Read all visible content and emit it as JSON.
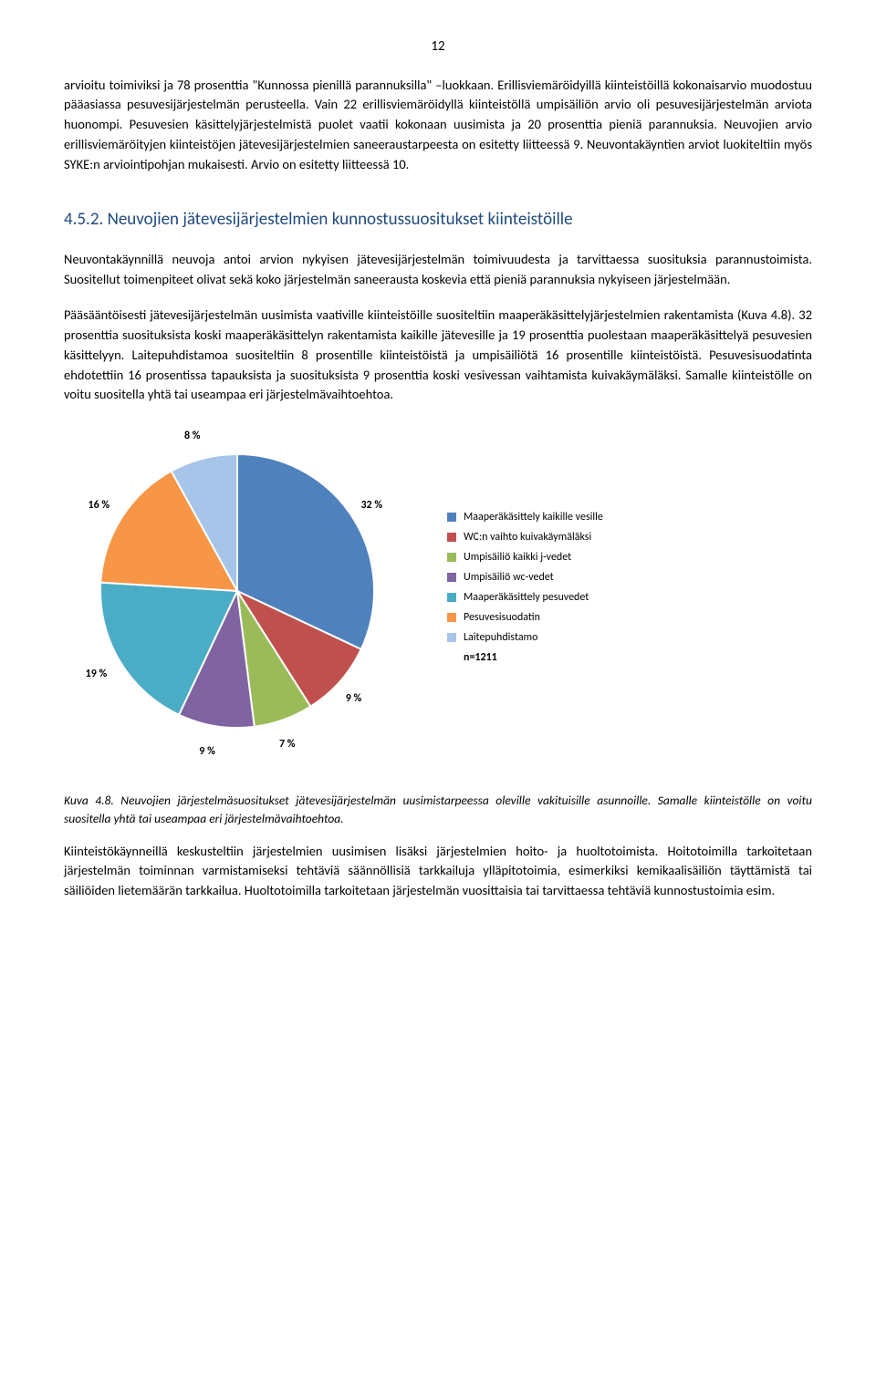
{
  "page_number": "12",
  "para1": "arvioitu toimiviksi ja 78 prosenttia \"Kunnossa pienillä parannuksilla\" –luokkaan. Erillisviemäröidyillä kiinteistöillä kokonaisarvio muodostuu pääasiassa pesuvesijärjestelmän perusteella. Vain 22 erillisviemäröidyllä kiinteistöllä umpisäiliön arvio oli pesuvesijärjestelmän arviota huonompi. Pesuvesien käsittelyjärjestelmistä puolet vaatii kokonaan uusimista ja 20 prosenttia pieniä parannuksia. Neuvojien arvio erillisviemäröityjen kiinteistöjen jätevesijärjestelmien saneeraustarpeesta on esitetty liitteessä 9. Neuvontakäyntien arviot luokiteltiin myös SYKE:n arviointipohjan mukaisesti. Arvio on esitetty liitteessä 10.",
  "heading": "4.5.2. Neuvojien jätevesijärjestelmien kunnostussuositukset kiinteistöille",
  "para2": "Neuvontakäynnillä neuvoja antoi arvion nykyisen jätevesijärjestelmän toimivuudesta ja tarvittaessa suosituksia parannustoimista. Suositellut toimenpiteet olivat sekä koko järjestelmän saneerausta koskevia että pieniä parannuksia nykyiseen järjestelmään.",
  "para3": "Pääsääntöisesti jätevesijärjestelmän uusimista vaativille kiinteistöille suositeltiin maaperäkäsittelyjärjestelmien rakentamista (Kuva 4.8). 32 prosenttia suosituksista koski maaperäkäsittelyn rakentamista kaikille jätevesille ja 19 prosenttia puolestaan maaperäkäsittelyä pesuvesien käsittelyyn. Laitepuhdistamoa suositeltiin 8 prosentille kiinteistöistä ja umpisäiliötä 16 prosentille kiinteistöistä. Pesuvesisuodatinta ehdotettiin 16 prosentissa tapauksista ja suosituksista 9 prosenttia koski vesivessan vaihtamista kuivakäymäläksi. Samalle kiinteistölle on voitu suositella yhtä tai useampaa eri järjestelmävaihtoehtoa.",
  "chart": {
    "type": "pie",
    "slices": [
      {
        "label": "Maaperäkäsittely kaikille vesille",
        "value": 32,
        "percent_label": "32 %",
        "color": "#4f81bd"
      },
      {
        "label": "WC:n vaihto kuivakäymäläksi",
        "value": 9,
        "percent_label": "9 %",
        "color": "#c0504d"
      },
      {
        "label": "Umpisäiliö kaikki j-vedet",
        "value": 7,
        "percent_label": "7 %",
        "color": "#9bbb59"
      },
      {
        "label": "Umpisäiliö wc-vedet",
        "value": 9,
        "percent_label": "9 %",
        "color": "#8064a2"
      },
      {
        "label": "Maaperäkäsittely pesuvedet",
        "value": 19,
        "percent_label": "19 %",
        "color": "#4bacc6"
      },
      {
        "label": "Pesuvesisuodatin",
        "value": 16,
        "percent_label": "16 %",
        "color": "#f79646"
      },
      {
        "label": "Laitepuhdistamo",
        "value": 8,
        "percent_label": "8 %",
        "color": "#a6c5e8"
      }
    ],
    "n_label": "n=1211",
    "background_color": "#ffffff",
    "legend_marker_size": 10,
    "label_fontsize": 12,
    "start_angle_deg": -90,
    "radius": 150,
    "label_offset": 1.18,
    "stroke": "#ffffff",
    "stroke_width": 2
  },
  "caption": "Kuva 4.8. Neuvojien järjestelmäsuositukset jätevesijärjestelmän uusimistarpeessa oleville vakituisille asunnoille. Samalle kiinteistölle on voitu suositella yhtä tai useampaa eri järjestelmävaihtoehtoa.",
  "para4": "Kiinteistökäynneillä keskusteltiin järjestelmien uusimisen lisäksi järjestelmien hoito- ja huoltotoimista. Hoitotoimilla tarkoitetaan järjestelmän toiminnan varmistamiseksi tehtäviä säännöllisiä tarkkailuja ylläpitotoimia, esimerkiksi kemikaalisäiliön täyttämistä tai säiliöiden lietemäärän tarkkailua. Huoltotoimilla tarkoitetaan järjestelmän vuosittaisia tai tarvittaessa tehtäviä kunnostustoimia esim."
}
